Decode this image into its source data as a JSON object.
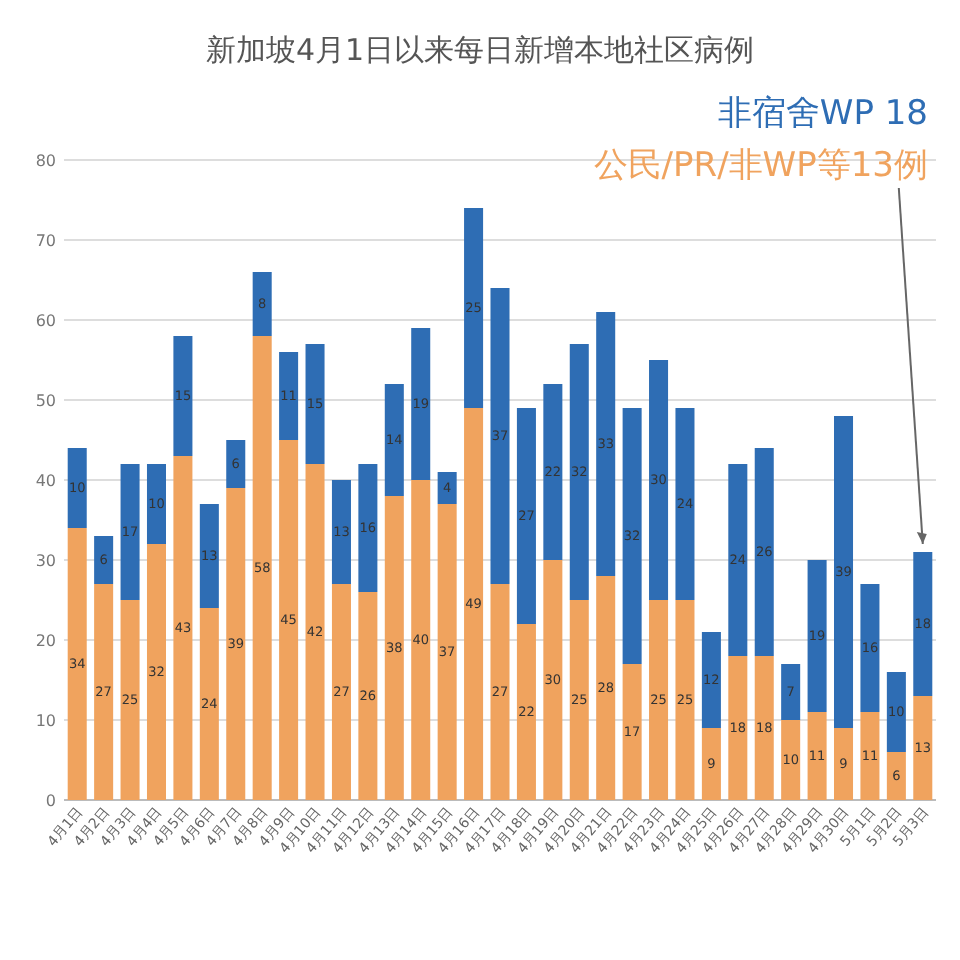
{
  "chart_data": {
    "type": "bar",
    "title": "新加坡4月1日以来每日新增本地社区病例",
    "stacked": true,
    "data_labels": true,
    "grid": "y",
    "ylim": [
      0,
      80
    ],
    "yticks": [
      0,
      10,
      20,
      30,
      40,
      50,
      60,
      70,
      80
    ],
    "categories": [
      "4月1日",
      "4月2日",
      "4月3日",
      "4月4日",
      "4月5日",
      "4月6日",
      "4月7日",
      "4月8日",
      "4月9日",
      "4月10日",
      "4月11日",
      "4月12日",
      "4月13日",
      "4月14日",
      "4月15日",
      "4月16日",
      "4月17日",
      "4月18日",
      "4月19日",
      "4月20日",
      "4月21日",
      "4月22日",
      "4月23日",
      "4月24日",
      "4月25日",
      "4月26日",
      "4月27日",
      "4月28日",
      "4月29日",
      "4月30日",
      "5月1日",
      "5月2日",
      "5月3日"
    ],
    "series": [
      {
        "color": "#f0a35e",
        "values": [
          34,
          27,
          25,
          32,
          43,
          24,
          39,
          58,
          45,
          42,
          27,
          26,
          38,
          40,
          37,
          49,
          27,
          22,
          30,
          25,
          28,
          17,
          25,
          25,
          9,
          18,
          18,
          10,
          11,
          9,
          11,
          6,
          13
        ]
      },
      {
        "color": "#2e6db4",
        "values": [
          10,
          6,
          17,
          10,
          15,
          13,
          6,
          8,
          11,
          15,
          13,
          16,
          14,
          19,
          4,
          25,
          37,
          27,
          22,
          32,
          33,
          32,
          30,
          24,
          12,
          24,
          26,
          7,
          19,
          39,
          16,
          10,
          18
        ]
      }
    ],
    "annotations": [
      "非宿舍WP 18",
      "公民/PR/非WP等13例"
    ]
  }
}
